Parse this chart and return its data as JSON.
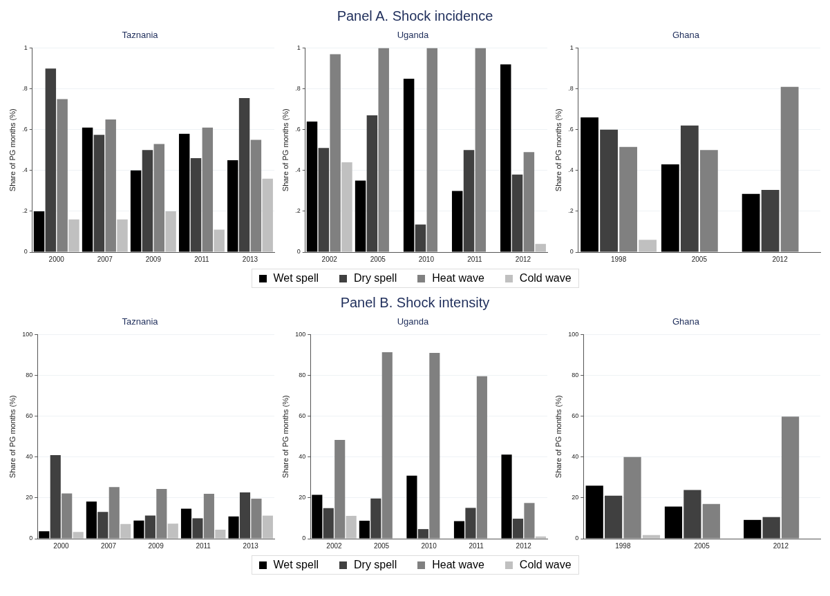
{
  "chart_data": [
    {
      "type": "bar",
      "title": "Taznania",
      "ylabel": "Share of PG months (%)",
      "categories": [
        "2000",
        "2007",
        "2009",
        "2011",
        "2013"
      ],
      "ylim": [
        0,
        1
      ],
      "yticks": [
        0,
        {
          "value": 0.2,
          "label": ".2"
        },
        {
          "value": 0.4,
          "label": ".4"
        },
        {
          "value": 0.6,
          "label": ".6"
        },
        {
          "value": 0.8,
          "label": ".8"
        },
        1
      ],
      "grid": "y",
      "legend": false,
      "series": [
        {
          "color": "#000000",
          "values": [
            0.2,
            0.61,
            0.4,
            0.58,
            0.45
          ]
        },
        {
          "color": "#404040",
          "values": [
            0.9,
            0.575,
            0.5,
            0.46,
            0.755
          ]
        },
        {
          "color": "#808080",
          "values": [
            0.75,
            0.65,
            0.53,
            0.61,
            0.55
          ]
        },
        {
          "color": "#c0c0c0",
          "values": [
            0.16,
            0.16,
            0.2,
            0.11,
            0.36
          ]
        }
      ]
    },
    {
      "type": "bar",
      "title": "Uganda",
      "ylabel": "Share of PG months (%)",
      "annotations": [
        "Panel A. Shock incidence"
      ],
      "categories": [
        "2002",
        "2005",
        "2010",
        "2011",
        "2012"
      ],
      "ylim": [
        0,
        1
      ],
      "yticks": [
        0,
        {
          "value": 0.2,
          "label": ".2"
        },
        {
          "value": 0.4,
          "label": ".4"
        },
        {
          "value": 0.6,
          "label": ".6"
        },
        {
          "value": 0.8,
          "label": ".8"
        },
        1
      ],
      "grid": "y",
      "legend": "bottom",
      "series": [
        {
          "name": "Wet spell",
          "color": "#000000",
          "values": [
            0.64,
            0.35,
            0.85,
            0.3,
            0.92
          ]
        },
        {
          "name": "Dry spell",
          "color": "#404040",
          "values": [
            0.51,
            0.67,
            0.135,
            0.5,
            0.38
          ]
        },
        {
          "name": "Heat wave",
          "color": "#808080",
          "values": [
            0.97,
            1,
            1,
            1,
            0.49
          ]
        },
        {
          "name": "Cold wave",
          "color": "#c0c0c0",
          "values": [
            0.44,
            null,
            null,
            null,
            0.04
          ]
        }
      ]
    },
    {
      "type": "bar",
      "title": "Ghana",
      "ylabel": "Share of PG months (%)",
      "categories": [
        "1998",
        "2005",
        "2012"
      ],
      "ylim": [
        0,
        1
      ],
      "yticks": [
        0,
        {
          "value": 0.2,
          "label": ".2"
        },
        {
          "value": 0.4,
          "label": ".4"
        },
        {
          "value": 0.6,
          "label": ".6"
        },
        {
          "value": 0.8,
          "label": ".8"
        },
        1
      ],
      "grid": "y",
      "legend": false,
      "series": [
        {
          "color": "#000000",
          "values": [
            0.66,
            0.43,
            0.285
          ]
        },
        {
          "color": "#404040",
          "values": [
            0.6,
            0.62,
            0.305
          ]
        },
        {
          "color": "#808080",
          "values": [
            0.515,
            0.5,
            0.81
          ]
        },
        {
          "color": "#c0c0c0",
          "values": [
            0.06,
            null,
            null
          ]
        }
      ]
    },
    {
      "type": "bar",
      "title": "Taznania",
      "ylabel": "Share of PG months (%)",
      "categories": [
        "2000",
        "2007",
        "2009",
        "2011",
        "2013"
      ],
      "ylim": [
        0,
        100
      ],
      "yticks": [
        0,
        20,
        40,
        60,
        80,
        100
      ],
      "grid": "y",
      "legend": false,
      "series": [
        {
          "color": "#000000",
          "values": [
            3.6,
            18.2,
            8.9,
            14.7,
            10.9
          ]
        },
        {
          "color": "#404040",
          "values": [
            41,
            13.1,
            11.3,
            10,
            22.7
          ]
        },
        {
          "color": "#808080",
          "values": [
            22.2,
            25.3,
            24.4,
            22,
            19.6
          ]
        },
        {
          "color": "#c0c0c0",
          "values": [
            3.3,
            7.2,
            7.4,
            4.4,
            11.3
          ]
        }
      ]
    },
    {
      "type": "bar",
      "title": "Uganda",
      "ylabel": "Share of PG months (%)",
      "annotations": [
        "Panel B. Shock intensity"
      ],
      "categories": [
        "2002",
        "2005",
        "2010",
        "2011",
        "2012"
      ],
      "ylim": [
        0,
        100
      ],
      "yticks": [
        0,
        20,
        40,
        60,
        80,
        100
      ],
      "grid": "y",
      "legend": "bottom",
      "series": [
        {
          "name": "Wet spell",
          "color": "#000000",
          "values": [
            21.5,
            8.8,
            30.9,
            8.6,
            41.2
          ]
        },
        {
          "name": "Dry spell",
          "color": "#404040",
          "values": [
            15,
            19.7,
            4.7,
            15.1,
            9.8
          ]
        },
        {
          "name": "Heat wave",
          "color": "#808080",
          "values": [
            48.4,
            91.4,
            91.1,
            79.6,
            17.5
          ]
        },
        {
          "name": "Cold wave",
          "color": "#c0c0c0",
          "values": [
            11.2,
            null,
            null,
            null,
            1.1
          ]
        }
      ]
    },
    {
      "type": "bar",
      "title": "Ghana",
      "ylabel": "Share of PG months (%)",
      "categories": [
        "1998",
        "2005",
        "2012"
      ],
      "ylim": [
        0,
        100
      ],
      "yticks": [
        0,
        20,
        40,
        60,
        80,
        100
      ],
      "grid": "y",
      "legend": false,
      "series": [
        {
          "color": "#000000",
          "values": [
            26,
            15.7,
            9.2
          ]
        },
        {
          "color": "#404040",
          "values": [
            21.1,
            23.9,
            10.6
          ]
        },
        {
          "color": "#808080",
          "values": [
            40,
            17,
            59.8
          ]
        },
        {
          "color": "#c0c0c0",
          "values": [
            1.8,
            null,
            null
          ]
        }
      ]
    }
  ]
}
